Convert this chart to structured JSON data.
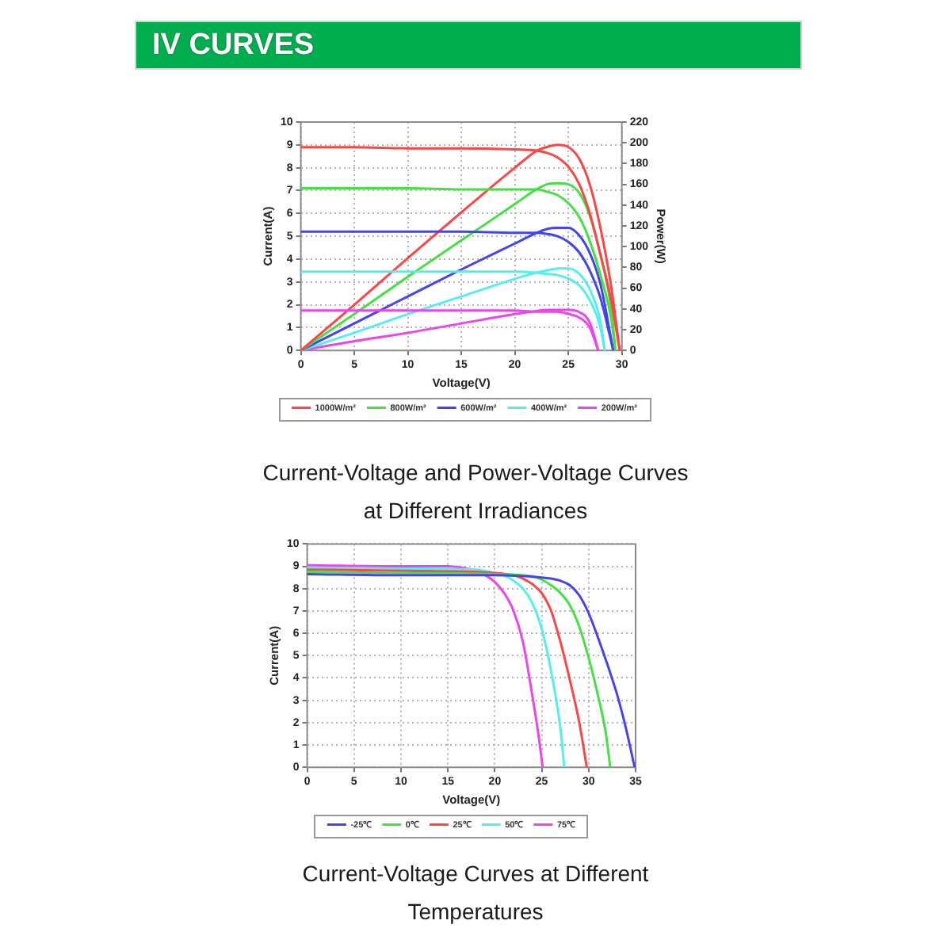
{
  "chart_data": [
    {
      "type": "line",
      "title": "Current-Voltage and Power-Voltage Curves at Different Irradiances",
      "annotations": [
        "IV CURVES"
      ],
      "xlabel": "Voltage(V)",
      "ylabel": "Current(A)",
      "y2label": "Power(W)",
      "xlim": [
        0,
        30
      ],
      "xticks": [
        0,
        5,
        10,
        15,
        20,
        25,
        30
      ],
      "ylim": [
        0,
        10
      ],
      "yticks": [
        0,
        1,
        2,
        3,
        4,
        5,
        6,
        7,
        8,
        9,
        10
      ],
      "y2lim": [
        0,
        220
      ],
      "y2ticks": [
        0,
        20,
        40,
        60,
        80,
        100,
        120,
        140,
        160,
        180,
        200,
        220
      ],
      "grid": true,
      "legend": "bottom",
      "series": [
        {
          "name": "1000W/m²",
          "color": "#ff4444",
          "x": [
            0,
            5,
            10,
            15,
            20,
            22,
            23,
            24,
            25,
            26,
            27,
            28,
            29,
            29.8
          ],
          "values": [
            8.9,
            8.9,
            8.85,
            8.85,
            8.8,
            8.75,
            8.65,
            8.45,
            8.05,
            7.3,
            6.0,
            4.2,
            2.2,
            0
          ]
        },
        {
          "name": "800W/m²",
          "color": "#44e044",
          "x": [
            0,
            5,
            10,
            15,
            20,
            22,
            23,
            24,
            25,
            26,
            27,
            28,
            29,
            29.4
          ],
          "values": [
            7.1,
            7.1,
            7.1,
            7.05,
            7.05,
            7.05,
            6.95,
            6.8,
            6.45,
            5.85,
            4.8,
            3.3,
            1.4,
            0
          ]
        },
        {
          "name": "600W/m²",
          "color": "#4444ee",
          "x": [
            0,
            5,
            10,
            15,
            20,
            22,
            23,
            24,
            25,
            26,
            27,
            28,
            29.2
          ],
          "values": [
            5.2,
            5.2,
            5.2,
            5.2,
            5.15,
            5.15,
            5.1,
            5.0,
            4.75,
            4.3,
            3.5,
            2.3,
            0
          ]
        },
        {
          "name": "400W/m²",
          "color": "#55eeee",
          "x": [
            0,
            5,
            10,
            15,
            20,
            22,
            23,
            24,
            25,
            26,
            27,
            28,
            28.4
          ],
          "values": [
            3.45,
            3.45,
            3.45,
            3.45,
            3.45,
            3.4,
            3.35,
            3.3,
            3.15,
            2.85,
            2.2,
            1.0,
            0
          ]
        },
        {
          "name": "200W/m²",
          "color": "#ee44ee",
          "x": [
            0,
            5,
            10,
            15,
            20,
            22,
            23,
            24,
            25,
            26,
            27,
            27.8
          ],
          "values": [
            1.75,
            1.75,
            1.75,
            1.75,
            1.75,
            1.7,
            1.7,
            1.7,
            1.6,
            1.45,
            1.0,
            0
          ]
        },
        {
          "color": "#ff4444",
          "axis": "y2",
          "x": [
            0,
            5,
            10,
            15,
            20,
            22,
            23,
            24,
            25,
            26,
            27,
            28,
            29,
            29.8
          ],
          "values": [
            0,
            44,
            89,
            133,
            176,
            192,
            196,
            198,
            196,
            185,
            160,
            118,
            62,
            0
          ]
        },
        {
          "color": "#44e044",
          "axis": "y2",
          "x": [
            0,
            5,
            10,
            15,
            20,
            22,
            23,
            24,
            25,
            26,
            27,
            28,
            29,
            29.4
          ],
          "values": [
            0,
            35,
            71,
            106,
            141,
            155,
            160,
            161,
            160,
            152,
            130,
            92,
            41,
            0
          ]
        },
        {
          "color": "#4444ee",
          "axis": "y2",
          "x": [
            0,
            5,
            10,
            15,
            20,
            22,
            23,
            24,
            25,
            26,
            27,
            28,
            29.2
          ],
          "values": [
            0,
            26,
            52,
            78,
            103,
            113,
            117,
            118,
            118,
            111,
            94,
            64,
            0
          ]
        },
        {
          "color": "#55eeee",
          "axis": "y2",
          "x": [
            0,
            5,
            10,
            15,
            20,
            22,
            23,
            24,
            25,
            26,
            27,
            28,
            28.4
          ],
          "values": [
            0,
            17,
            35,
            52,
            69,
            75,
            77,
            79,
            79,
            74,
            59,
            28,
            0
          ]
        },
        {
          "color": "#ee44ee",
          "axis": "y2",
          "x": [
            0,
            5,
            10,
            15,
            20,
            22,
            23,
            24,
            25,
            26,
            27,
            27.8
          ],
          "values": [
            0,
            9,
            17,
            26,
            35,
            38,
            39,
            39,
            39,
            37,
            27,
            0
          ]
        }
      ]
    },
    {
      "type": "line",
      "title": "Current-Voltage Curves at Different Temperatures",
      "xlabel": "Voltage(V)",
      "ylabel": "Current(A)",
      "xlim": [
        0,
        35
      ],
      "xticks": [
        0,
        5,
        10,
        15,
        20,
        25,
        30,
        35
      ],
      "ylim": [
        0,
        10
      ],
      "yticks": [
        0,
        1,
        2,
        3,
        4,
        5,
        6,
        7,
        8,
        9,
        10
      ],
      "grid": true,
      "legend": "bottom",
      "series": [
        {
          "name": "-25℃",
          "color": "#4444ee",
          "x": [
            0,
            10,
            20,
            25,
            26,
            27,
            28,
            29,
            30,
            31,
            32,
            33,
            34,
            34.9
          ],
          "values": [
            8.65,
            8.6,
            8.6,
            8.5,
            8.45,
            8.35,
            8.15,
            7.7,
            6.9,
            5.8,
            4.6,
            3.3,
            1.7,
            0
          ]
        },
        {
          "name": "0℃",
          "color": "#44e044",
          "x": [
            0,
            10,
            20,
            24,
            25,
            26,
            27,
            28,
            29,
            30,
            31,
            31.8,
            32.3
          ],
          "values": [
            8.75,
            8.7,
            8.65,
            8.55,
            8.4,
            8.15,
            7.8,
            7.25,
            6.3,
            4.9,
            3.2,
            1.6,
            0
          ]
        },
        {
          "name": "25℃",
          "color": "#ff4444",
          "x": [
            0,
            10,
            20,
            22,
            23,
            24,
            25,
            26,
            27,
            28,
            29,
            29.8
          ],
          "values": [
            8.85,
            8.8,
            8.7,
            8.6,
            8.45,
            8.2,
            7.8,
            7.0,
            5.6,
            3.9,
            2.0,
            0
          ]
        },
        {
          "name": "50℃",
          "color": "#55eeee",
          "x": [
            0,
            10,
            18,
            20,
            21,
            22,
            23,
            24,
            25,
            26,
            27,
            27.4
          ],
          "values": [
            8.95,
            8.9,
            8.85,
            8.7,
            8.6,
            8.35,
            8.0,
            7.35,
            6.2,
            4.3,
            1.7,
            0
          ]
        },
        {
          "name": "75℃",
          "color": "#ee44ee",
          "x": [
            0,
            10,
            15,
            17,
            18,
            19,
            20,
            21,
            22,
            23,
            24,
            24.6,
            25.1
          ],
          "values": [
            9.05,
            9.0,
            9.0,
            8.9,
            8.8,
            8.6,
            8.3,
            7.8,
            7.0,
            5.6,
            3.2,
            1.6,
            0
          ]
        }
      ]
    }
  ]
}
